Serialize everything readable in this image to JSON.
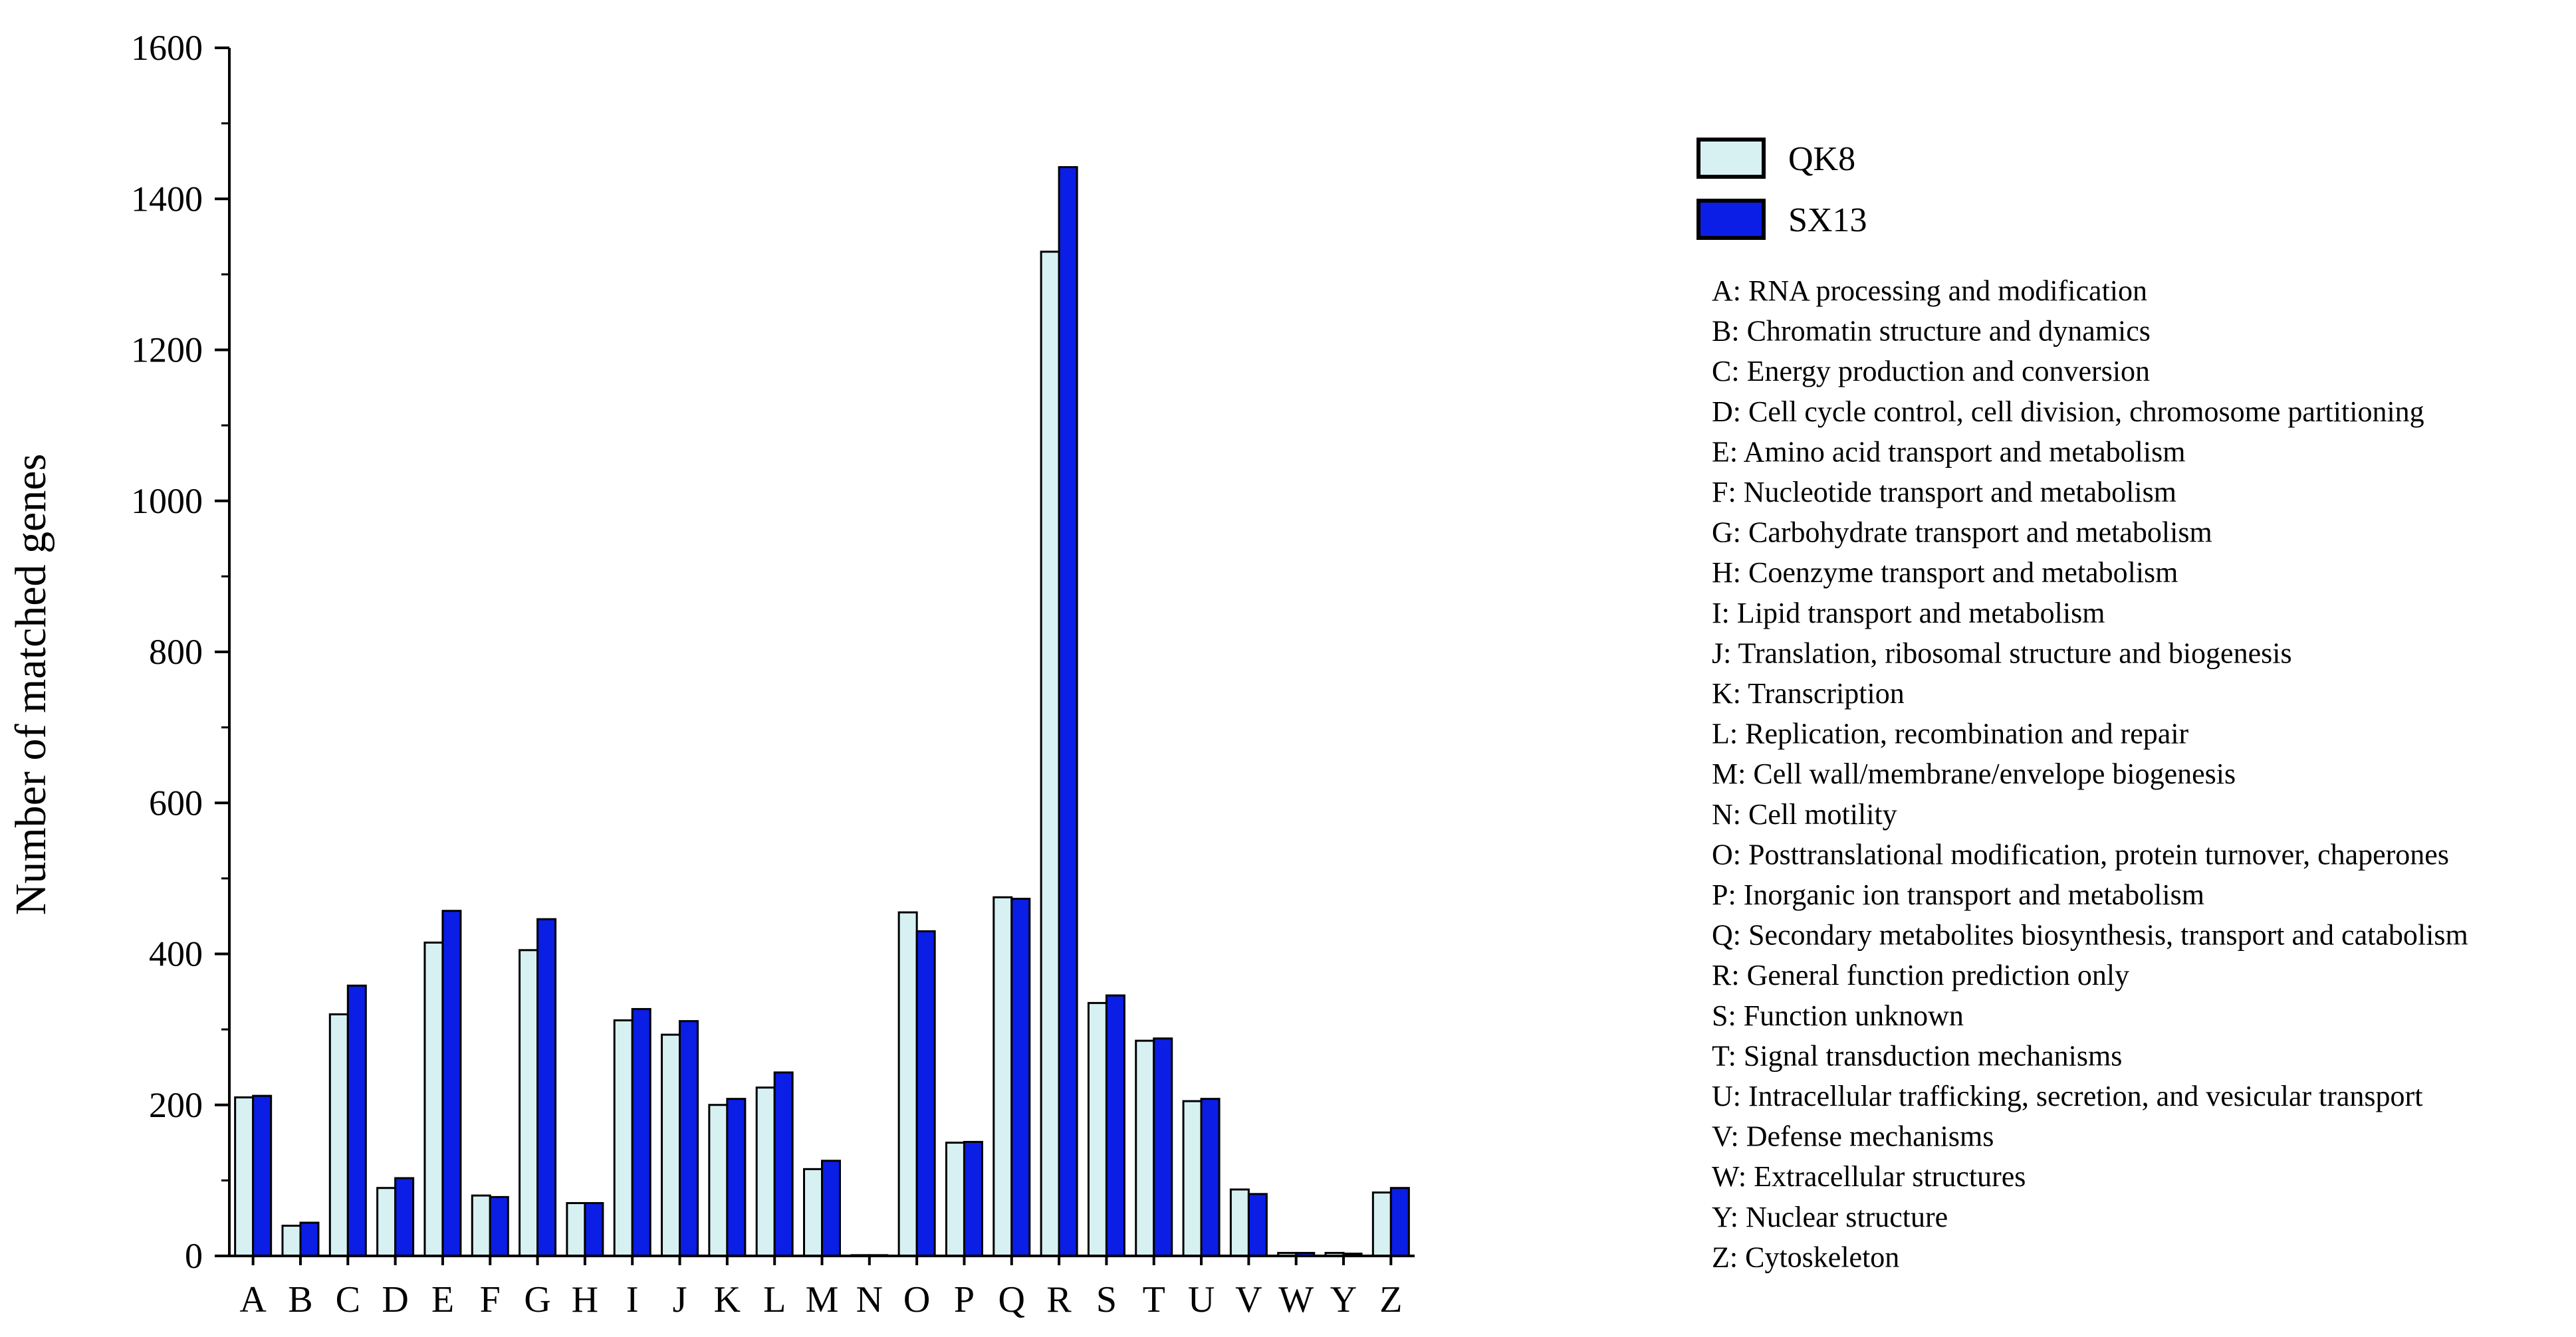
{
  "chart_data": {
    "type": "bar",
    "title": "",
    "xlabel": "",
    "ylabel": "Number of matched genes",
    "ylim": [
      0,
      1600
    ],
    "yticks": [
      0,
      200,
      400,
      600,
      800,
      1000,
      1200,
      1400,
      1600
    ],
    "grid": false,
    "legend_position": "right",
    "categories": [
      "A",
      "B",
      "C",
      "D",
      "E",
      "F",
      "G",
      "H",
      "I",
      "J",
      "K",
      "L",
      "M",
      "N",
      "O",
      "P",
      "Q",
      "R",
      "S",
      "T",
      "U",
      "V",
      "W",
      "Y",
      "Z"
    ],
    "series": [
      {
        "name": "QK8",
        "color": "#d7f1f3",
        "values": [
          210,
          40,
          320,
          90,
          415,
          80,
          405,
          70,
          312,
          293,
          200,
          223,
          115,
          1,
          455,
          150,
          475,
          1330,
          335,
          285,
          205,
          88,
          4,
          4,
          84
        ]
      },
      {
        "name": "SX13",
        "color": "#0a1ee6",
        "values": [
          212,
          44,
          358,
          103,
          457,
          78,
          446,
          70,
          327,
          311,
          208,
          243,
          126,
          1,
          430,
          151,
          473,
          1442,
          345,
          288,
          208,
          82,
          4,
          3,
          90
        ]
      }
    ],
    "cog_categories": [
      "A: RNA processing and modification",
      "B: Chromatin structure and dynamics",
      "C: Energy production and conversion",
      "D: Cell cycle control, cell division, chromosome partitioning",
      "E: Amino acid transport and metabolism",
      "F: Nucleotide transport and metabolism",
      "G: Carbohydrate transport and metabolism",
      "H: Coenzyme transport and metabolism",
      "I: Lipid transport and metabolism",
      "J: Translation, ribosomal structure and biogenesis",
      "K: Transcription",
      "L: Replication, recombination and repair",
      "M: Cell wall/membrane/envelope biogenesis",
      "N: Cell motility",
      "O: Posttranslational modification, protein turnover, chaperones",
      "P: Inorganic ion transport and metabolism",
      "Q: Secondary metabolites biosynthesis, transport and catabolism",
      "R: General function prediction only",
      "S: Function unknown",
      "T: Signal transduction mechanisms",
      "U: Intracellular trafficking, secretion, and vesicular transport",
      "V: Defense mechanisms",
      "W: Extracellular structures",
      "Y: Nuclear structure",
      "Z: Cytoskeleton"
    ]
  }
}
